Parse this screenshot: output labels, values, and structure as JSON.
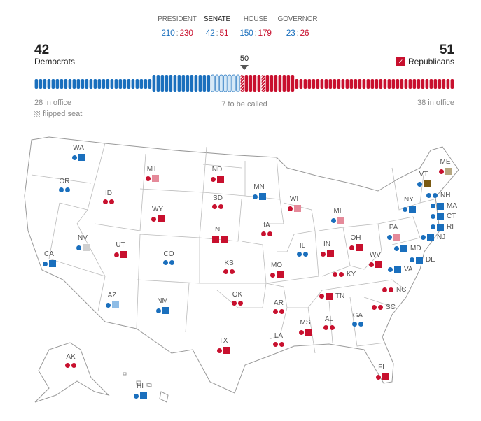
{
  "tabs": [
    {
      "label": "PRESIDENT",
      "dem": "210",
      "rep": "230",
      "active": false
    },
    {
      "label": "SENATE",
      "dem": "42",
      "rep": "51",
      "active": true
    },
    {
      "label": "HOUSE",
      "dem": "150",
      "rep": "179",
      "active": false
    },
    {
      "label": "GOVERNOR",
      "dem": "23",
      "rep": "26",
      "active": false
    }
  ],
  "senate": {
    "dem_total": "42",
    "dem_label": "Democrats",
    "rep_total": "51",
    "rep_label": "Republicans",
    "rep_check": "✓",
    "majority": "50",
    "dem_in_office": "28 in office",
    "rep_in_office": "38 in office",
    "to_be_called": "7 to be called",
    "flipped_legend": "flipped seat",
    "seats": {
      "dem_in_office": 28,
      "dem_won": 14,
      "uncalled": 7,
      "rep_won": 13,
      "rep_flipped_positions": [
        1,
        6
      ],
      "rep_in_office": 38
    }
  },
  "colors": {
    "d": "#1a6fbd",
    "r": "#c8102e",
    "p": "#e58a9a",
    "b": "#8fbde6",
    "g": "#d0d0d0",
    "t": "#b5a67f",
    "i": "#7a5a12",
    "uncalled": "#d6e9f7"
  },
  "states": [
    {
      "code": "WA",
      "marks": [
        "dc",
        "ds"
      ]
    },
    {
      "code": "OR",
      "marks": [
        "dc",
        "dc"
      ]
    },
    {
      "code": "ID",
      "marks": [
        "rc",
        "rc"
      ]
    },
    {
      "code": "MT",
      "marks": [
        "rc",
        "ps"
      ]
    },
    {
      "code": "ND",
      "marks": [
        "rc",
        "rs"
      ]
    },
    {
      "code": "SD",
      "marks": [
        "rc",
        "rc"
      ]
    },
    {
      "code": "WY",
      "marks": [
        "rc",
        "rs"
      ]
    },
    {
      "code": "NE",
      "marks": [
        "rs",
        "rs"
      ]
    },
    {
      "code": "UT",
      "marks": [
        "rc",
        "rs"
      ]
    },
    {
      "code": "CO",
      "marks": [
        "dc",
        "dc"
      ]
    },
    {
      "code": "NV",
      "marks": [
        "dc",
        "gs"
      ]
    },
    {
      "code": "CA",
      "marks": [
        "dc",
        "ds"
      ]
    },
    {
      "code": "KS",
      "marks": [
        "rc",
        "rc"
      ]
    },
    {
      "code": "MN",
      "marks": [
        "dc",
        "ds"
      ]
    },
    {
      "code": "WI",
      "marks": [
        "rc",
        "ps"
      ]
    },
    {
      "code": "MI",
      "marks": [
        "dc",
        "ps"
      ]
    },
    {
      "code": "IA",
      "marks": [
        "rc",
        "rc"
      ]
    },
    {
      "code": "IL",
      "marks": [
        "dc",
        "dc"
      ]
    },
    {
      "code": "IN",
      "marks": [
        "rc",
        "rs"
      ]
    },
    {
      "code": "OH",
      "marks": [
        "rc",
        "rs"
      ]
    },
    {
      "code": "MO",
      "marks": [
        "rc",
        "rs"
      ]
    },
    {
      "code": "KY",
      "marks": [
        "rc",
        "rc"
      ]
    },
    {
      "code": "WV",
      "marks": [
        "rc",
        "rs"
      ]
    },
    {
      "code": "PA",
      "marks": [
        "dc",
        "ps"
      ]
    },
    {
      "code": "NY",
      "marks": [
        "dc",
        "ds"
      ]
    },
    {
      "code": "VT",
      "marks": [
        "dc",
        "is"
      ]
    },
    {
      "code": "ME",
      "marks": [
        "rc",
        "ts"
      ]
    },
    {
      "code": "NH",
      "marks": [
        "dc",
        "dc"
      ]
    },
    {
      "code": "MA",
      "marks": [
        "dc",
        "ds"
      ]
    },
    {
      "code": "CT",
      "marks": [
        "dc",
        "ds"
      ]
    },
    {
      "code": "RI",
      "marks": [
        "dc",
        "ds"
      ]
    },
    {
      "code": "NJ",
      "marks": [
        "dc",
        "ds"
      ]
    },
    {
      "code": "MD",
      "marks": [
        "dc",
        "ds"
      ]
    },
    {
      "code": "DE",
      "marks": [
        "dc",
        "ds"
      ]
    },
    {
      "code": "VA",
      "marks": [
        "dc",
        "ds"
      ]
    },
    {
      "code": "NC",
      "marks": [
        "rc",
        "rc"
      ]
    },
    {
      "code": "SC",
      "marks": [
        "rc",
        "rc"
      ]
    },
    {
      "code": "TN",
      "marks": [
        "rc",
        "rs"
      ]
    },
    {
      "code": "AR",
      "marks": [
        "rc",
        "rc"
      ]
    },
    {
      "code": "OK",
      "marks": [
        "rc",
        "rc"
      ]
    },
    {
      "code": "AZ",
      "marks": [
        "dc",
        "bs"
      ]
    },
    {
      "code": "NM",
      "marks": [
        "dc",
        "ds"
      ]
    },
    {
      "code": "TX",
      "marks": [
        "rc",
        "rs"
      ]
    },
    {
      "code": "AK",
      "marks": [
        "rc",
        "rc"
      ]
    },
    {
      "code": "HI",
      "marks": [
        "dc",
        "ds"
      ]
    },
    {
      "code": "LA",
      "marks": [
        "rc",
        "rc"
      ]
    },
    {
      "code": "MS",
      "marks": [
        "rc",
        "rs"
      ]
    },
    {
      "code": "AL",
      "marks": [
        "rc",
        "rc"
      ]
    },
    {
      "code": "GA",
      "marks": [
        "dc",
        "dc"
      ]
    },
    {
      "code": "FL",
      "marks": [
        "rc",
        "rs"
      ]
    }
  ]
}
